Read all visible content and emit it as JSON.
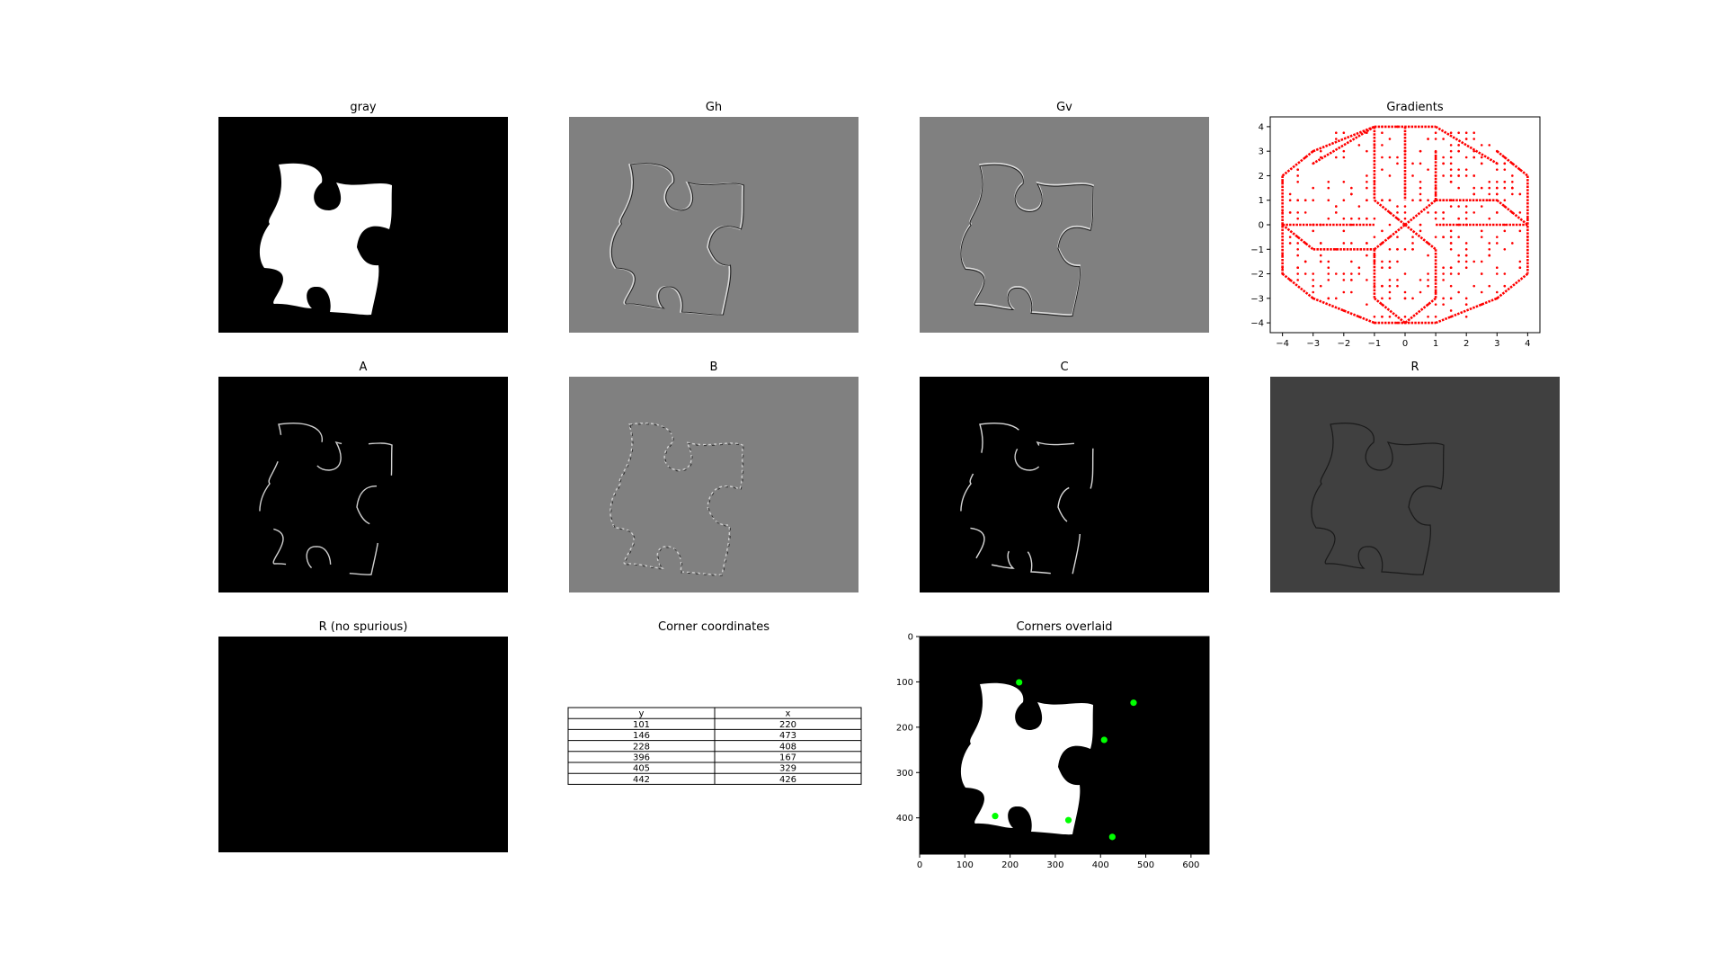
{
  "figure": {
    "panels": [
      {
        "id": "gray",
        "title": "gray",
        "kind": "image",
        "background": "#000000",
        "fill": "#ffffff",
        "edge": "none"
      },
      {
        "id": "gh",
        "title": "Gh",
        "kind": "image",
        "background": "#808080",
        "fill": "none",
        "edge": "gradient-vertical-edges"
      },
      {
        "id": "gv",
        "title": "Gv",
        "kind": "image",
        "background": "#808080",
        "fill": "none",
        "edge": "gradient-horizontal-edges"
      },
      {
        "id": "a",
        "title": "A",
        "kind": "image",
        "background": "#000000",
        "fill": "none",
        "edge": "bright-vertical-edges"
      },
      {
        "id": "b",
        "title": "B",
        "kind": "image",
        "background": "#808080",
        "fill": "none",
        "edge": "mixed-edges"
      },
      {
        "id": "c",
        "title": "C",
        "kind": "image",
        "background": "#000000",
        "fill": "none",
        "edge": "bright-horizontal-edges"
      },
      {
        "id": "r",
        "title": "R",
        "kind": "image",
        "background": "#404040",
        "fill": "none",
        "edge": "dark-edges"
      },
      {
        "id": "rns",
        "title": "R (no spurious)",
        "kind": "image",
        "background": "#000000",
        "fill": "none",
        "edge": "none"
      }
    ],
    "table_panel": {
      "title": "Corner coordinates",
      "columns": [
        "y",
        "x"
      ],
      "rows": [
        [
          101,
          220
        ],
        [
          146,
          473
        ],
        [
          228,
          408
        ],
        [
          396,
          167
        ],
        [
          405,
          329
        ],
        [
          442,
          426
        ]
      ]
    },
    "overlay_panel": {
      "title": "Corners overlaid",
      "marker_color": "#00ff00",
      "background": "#000000",
      "fill": "#ffffff"
    }
  },
  "chart_data": [
    {
      "type": "scatter",
      "title": "Gradients",
      "xlim": [
        -4.4,
        4.4
      ],
      "ylim": [
        -4.4,
        4.4
      ],
      "xticks": [
        -4,
        -3,
        -2,
        -1,
        0,
        1,
        2,
        3,
        4
      ],
      "yticks": [
        -4,
        -3,
        -2,
        -1,
        0,
        1,
        2,
        3,
        4
      ],
      "marker_color": "#ff0000",
      "grid": false,
      "series": [
        {
          "segments": [
            [
              [
                -1,
                4
              ],
              [
                1,
                4
              ]
            ],
            [
              [
                1,
                4
              ],
              [
                3,
                2.5
              ]
            ],
            [
              [
                -1,
                4
              ],
              [
                -3,
                2.5
              ]
            ],
            [
              [
                -4,
                2
              ],
              [
                -4,
                -2
              ]
            ],
            [
              [
                4,
                2
              ],
              [
                4,
                -2
              ]
            ],
            [
              [
                -1,
                -4
              ],
              [
                1,
                -4
              ]
            ],
            [
              [
                -3,
                3
              ],
              [
                -1,
                4
              ]
            ],
            [
              [
                -4,
                2
              ],
              [
                -3,
                3
              ]
            ],
            [
              [
                3,
                3
              ],
              [
                4,
                2
              ]
            ],
            [
              [
                -4,
                -2
              ],
              [
                -3,
                -3
              ]
            ],
            [
              [
                4,
                -2
              ],
              [
                3,
                -3
              ]
            ],
            [
              [
                -3,
                -3
              ],
              [
                -1,
                -4
              ]
            ],
            [
              [
                1,
                -4
              ],
              [
                3,
                -3
              ]
            ],
            [
              [
                -1,
                4
              ],
              [
                -1,
                1
              ]
            ],
            [
              [
                1,
                3
              ],
              [
                1,
                1
              ]
            ],
            [
              [
                -1,
                1
              ],
              [
                0,
                0
              ]
            ],
            [
              [
                1,
                1
              ],
              [
                3,
                1
              ]
            ],
            [
              [
                3,
                1
              ],
              [
                4,
                0
              ]
            ],
            [
              [
                0,
                0
              ],
              [
                1,
                1
              ]
            ],
            [
              [
                -4,
                0
              ],
              [
                -3,
                -1
              ]
            ],
            [
              [
                -3,
                -1
              ],
              [
                -1,
                -1
              ]
            ],
            [
              [
                -1,
                -1
              ],
              [
                0,
                0
              ]
            ],
            [
              [
                0,
                0
              ],
              [
                1,
                -1
              ]
            ],
            [
              [
                1,
                -1
              ],
              [
                1,
                -3
              ]
            ],
            [
              [
                1,
                -3
              ],
              [
                0,
                -4
              ]
            ],
            [
              [
                -1,
                -1
              ],
              [
                -1,
                -3
              ]
            ],
            [
              [
                -1,
                -3
              ],
              [
                0,
                -4
              ]
            ],
            [
              [
                -4,
                0
              ],
              [
                -1,
                0
              ]
            ],
            [
              [
                1,
                0
              ],
              [
                4,
                0
              ]
            ],
            [
              [
                0,
                4
              ],
              [
                0,
                1
              ]
            ]
          ]
        }
      ]
    },
    {
      "type": "image",
      "title": "Corners overlaid",
      "xlim": [
        0,
        640
      ],
      "ylim": [
        480,
        0
      ],
      "xticks": [
        0,
        100,
        200,
        300,
        400,
        500,
        600
      ],
      "yticks": [
        0,
        100,
        200,
        300,
        400
      ],
      "corners": [
        {
          "y": 101,
          "x": 220
        },
        {
          "y": 146,
          "x": 473
        },
        {
          "y": 228,
          "x": 408
        },
        {
          "y": 396,
          "x": 167
        },
        {
          "y": 405,
          "x": 329
        },
        {
          "y": 442,
          "x": 426
        }
      ]
    }
  ]
}
